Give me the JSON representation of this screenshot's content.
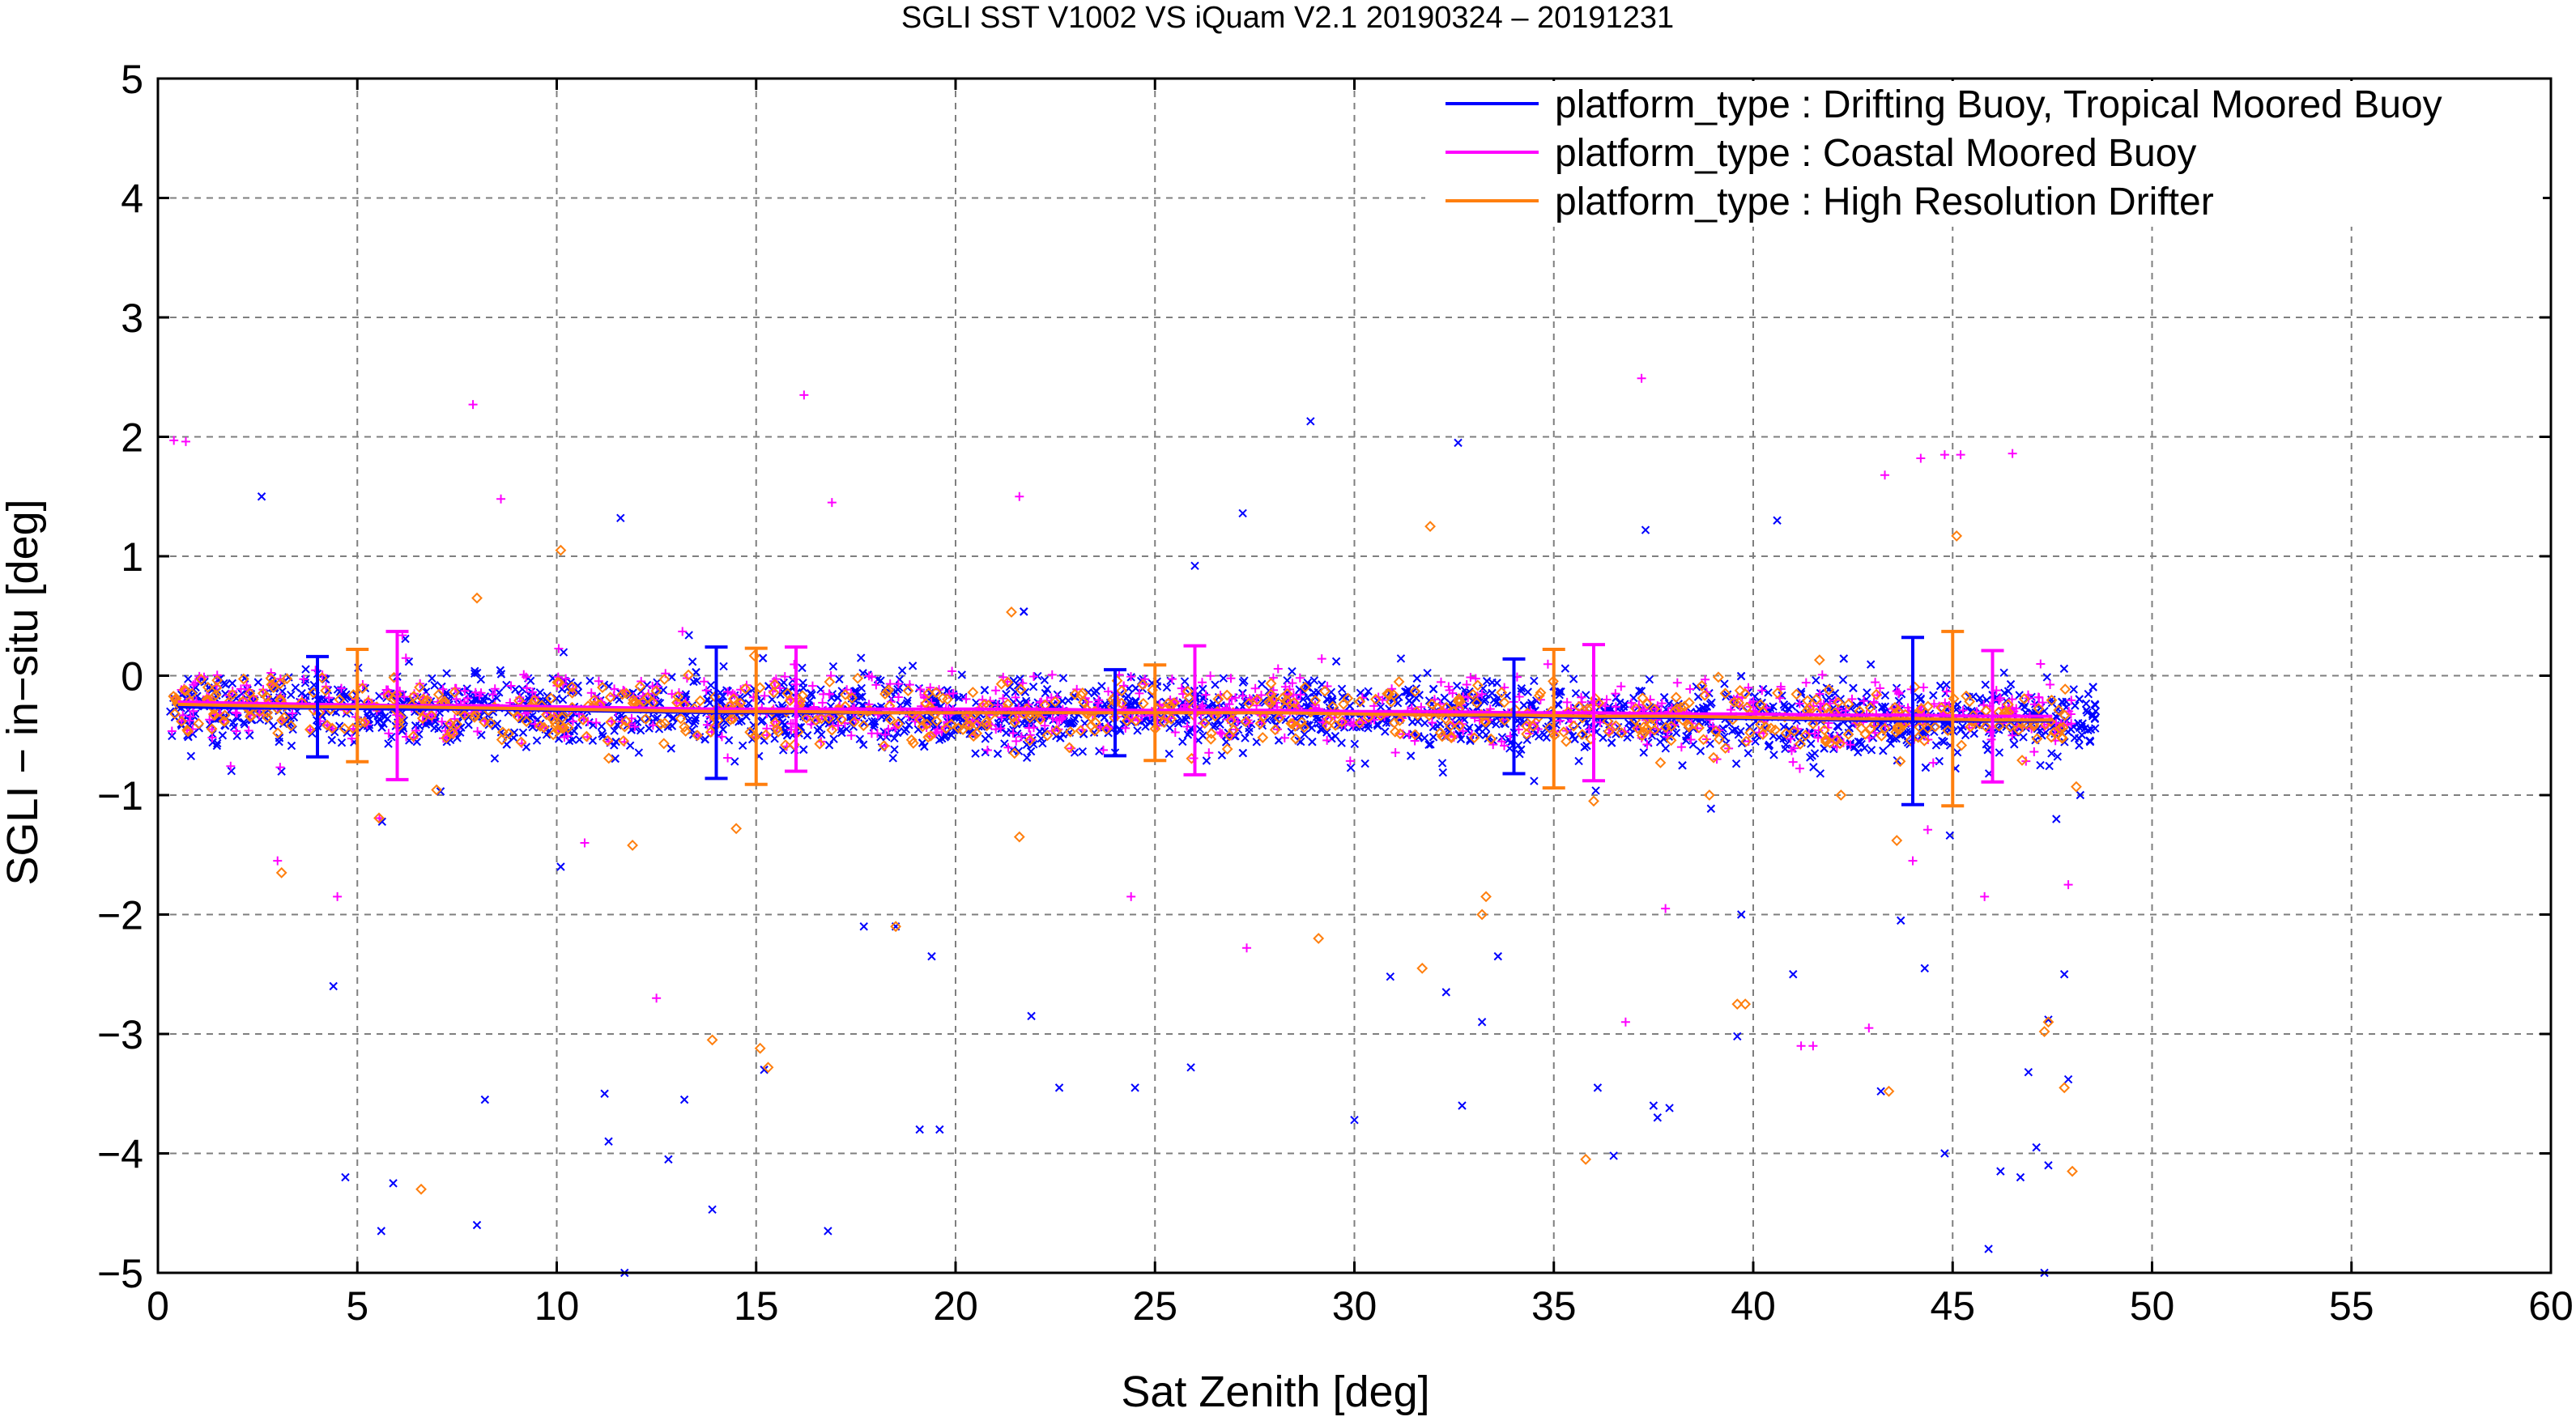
{
  "chart_data": {
    "type": "scatter",
    "title": "SGLI SST V1002 VS iQuam V2.1 20190324 – 20191231",
    "xlabel": "Sat Zenith [deg]",
    "ylabel": "SGLI − in−situ [deg]",
    "xlim": [
      0,
      60
    ],
    "ylim": [
      -5,
      5
    ],
    "xticks": [
      0,
      5,
      10,
      15,
      20,
      25,
      30,
      35,
      40,
      45,
      50,
      55,
      60
    ],
    "yticks": [
      -5,
      -4,
      -3,
      -2,
      -1,
      0,
      1,
      2,
      3,
      4,
      5
    ],
    "xtick_labels": [
      "0",
      "5",
      "10",
      "15",
      "20",
      "25",
      "30",
      "35",
      "40",
      "45",
      "50",
      "55",
      "60"
    ],
    "ytick_labels": [
      "−5",
      "−4",
      "−3",
      "−2",
      "−1",
      "0",
      "1",
      "2",
      "3",
      "4",
      "5"
    ],
    "grid": true,
    "legend_position": "top-right",
    "series": [
      {
        "name": "platform_type : Drifting Buoy, Tropical Moored Buoy",
        "color": "#0000ff",
        "marker": "x",
        "mean_line": {
          "x": [
            0.5,
            2,
            4,
            6,
            8,
            10,
            12,
            14,
            16,
            18,
            20,
            22,
            24,
            26,
            28,
            30,
            32,
            34,
            36,
            38,
            40,
            42,
            44,
            46,
            47.5
          ],
          "y": [
            -0.26,
            -0.27,
            -0.27,
            -0.28,
            -0.28,
            -0.29,
            -0.3,
            -0.31,
            -0.31,
            -0.31,
            -0.31,
            -0.31,
            -0.31,
            -0.31,
            -0.31,
            -0.32,
            -0.33,
            -0.34,
            -0.35,
            -0.35,
            -0.36,
            -0.37,
            -0.38,
            -0.38,
            -0.38
          ]
        },
        "errorbars": [
          {
            "x": 4,
            "mean": -0.26,
            "sd": 0.42
          },
          {
            "x": 14,
            "mean": -0.31,
            "sd": 0.55
          },
          {
            "x": 24,
            "mean": -0.31,
            "sd": 0.36
          },
          {
            "x": 34,
            "mean": -0.34,
            "sd": 0.48
          },
          {
            "x": 44,
            "mean": -0.38,
            "sd": 0.7
          }
        ],
        "outliers": [
          [
            2.6,
            1.5
          ],
          [
            4.4,
            -2.6
          ],
          [
            4.7,
            -4.2
          ],
          [
            5.6,
            -4.65
          ],
          [
            5.9,
            -4.25
          ],
          [
            8.0,
            -4.6
          ],
          [
            8.2,
            -3.55
          ],
          [
            10.1,
            -1.6
          ],
          [
            11.2,
            -3.5
          ],
          [
            11.3,
            -3.9
          ],
          [
            11.6,
            1.32
          ],
          [
            11.7,
            -5.0
          ],
          [
            12.8,
            -4.05
          ],
          [
            13.2,
            -3.55
          ],
          [
            13.9,
            -4.47
          ],
          [
            15.2,
            -3.3
          ],
          [
            16.8,
            -4.65
          ],
          [
            17.7,
            -2.1
          ],
          [
            18.5,
            -2.1
          ],
          [
            19.1,
            -3.8
          ],
          [
            19.4,
            -2.35
          ],
          [
            19.6,
            -3.8
          ],
          [
            21.9,
            -2.85
          ],
          [
            22.6,
            -3.45
          ],
          [
            24.5,
            -3.45
          ],
          [
            25.9,
            -3.28
          ],
          [
            27.2,
            1.36
          ],
          [
            28.9,
            2.13
          ],
          [
            30.0,
            -3.72
          ],
          [
            30.9,
            -2.52
          ],
          [
            32.3,
            -2.65
          ],
          [
            32.6,
            1.95
          ],
          [
            32.7,
            -3.6
          ],
          [
            33.2,
            -2.9
          ],
          [
            33.6,
            -2.35
          ],
          [
            36.1,
            -3.45
          ],
          [
            36.5,
            -4.02
          ],
          [
            37.5,
            -3.6
          ],
          [
            37.6,
            -3.7
          ],
          [
            37.9,
            -3.62
          ],
          [
            39.6,
            -3.02
          ],
          [
            39.7,
            -2.0
          ],
          [
            41.0,
            -2.5
          ],
          [
            43.7,
            -2.05
          ],
          [
            44.8,
            -4.0
          ],
          [
            45.9,
            -4.8
          ],
          [
            46.2,
            -4.15
          ],
          [
            46.7,
            -4.2
          ],
          [
            46.9,
            -3.32
          ],
          [
            47.1,
            -3.95
          ],
          [
            47.3,
            -5.0
          ],
          [
            47.4,
            -4.1
          ],
          [
            47.4,
            -2.88
          ],
          [
            47.8,
            -2.5
          ],
          [
            47.9,
            -3.38
          ],
          [
            43.2,
            -3.48
          ],
          [
            44.3,
            -2.45
          ],
          [
            47.6,
            -1.2
          ],
          [
            48.2,
            -1.0
          ],
          [
            40.6,
            1.3
          ],
          [
            37.3,
            1.22
          ],
          [
            26.0,
            0.92
          ]
        ]
      },
      {
        "name": "platform_type : Coastal Moored Buoy",
        "color": "#ff00ff",
        "marker": "+",
        "mean_line": {
          "x": [
            0.5,
            2,
            4,
            6,
            8,
            10,
            12,
            14,
            16,
            18,
            20,
            22,
            24,
            26,
            28,
            30,
            32,
            34,
            36,
            38,
            40,
            42,
            44,
            46,
            47.5
          ],
          "y": [
            -0.22,
            -0.23,
            -0.24,
            -0.25,
            -0.25,
            -0.26,
            -0.27,
            -0.28,
            -0.28,
            -0.28,
            -0.28,
            -0.28,
            -0.29,
            -0.29,
            -0.29,
            -0.3,
            -0.3,
            -0.31,
            -0.31,
            -0.32,
            -0.32,
            -0.33,
            -0.33,
            -0.34,
            -0.34
          ]
        },
        "errorbars": [
          {
            "x": 6,
            "mean": -0.25,
            "sd": 0.62
          },
          {
            "x": 16,
            "mean": -0.28,
            "sd": 0.52
          },
          {
            "x": 26,
            "mean": -0.29,
            "sd": 0.54
          },
          {
            "x": 36,
            "mean": -0.31,
            "sd": 0.57
          },
          {
            "x": 46,
            "mean": -0.34,
            "sd": 0.55
          }
        ],
        "outliers": [
          [
            0.4,
            1.97
          ],
          [
            0.7,
            1.96
          ],
          [
            7.9,
            2.27
          ],
          [
            16.2,
            2.35
          ],
          [
            37.2,
            2.49
          ],
          [
            8.6,
            1.48
          ],
          [
            21.6,
            1.5
          ],
          [
            16.9,
            1.45
          ],
          [
            43.3,
            1.68
          ],
          [
            44.2,
            1.82
          ],
          [
            44.8,
            1.85
          ],
          [
            45.2,
            1.85
          ],
          [
            46.5,
            1.86
          ],
          [
            47.9,
            -1.75
          ],
          [
            12.5,
            -2.7
          ],
          [
            41.2,
            -3.1
          ],
          [
            41.5,
            -3.1
          ],
          [
            45.8,
            -1.85
          ],
          [
            36.8,
            -2.9
          ],
          [
            24.4,
            -1.85
          ],
          [
            27.3,
            -2.28
          ],
          [
            44.0,
            -1.55
          ],
          [
            37.8,
            -1.95
          ],
          [
            10.7,
            -1.4
          ],
          [
            4.5,
            -1.85
          ],
          [
            3.0,
            -1.55
          ],
          [
            42.9,
            -2.95
          ]
        ]
      },
      {
        "name": "platform_type : High Resolution Drifter",
        "color": "#ff7f0e",
        "marker": "diamond",
        "mean_line": {
          "x": [
            0.5,
            2,
            4,
            6,
            8,
            10,
            12,
            14,
            16,
            18,
            20,
            22,
            24,
            26,
            28,
            30,
            32,
            34,
            36,
            38,
            40,
            42,
            44,
            46,
            47.5
          ],
          "y": [
            -0.24,
            -0.25,
            -0.26,
            -0.26,
            -0.27,
            -0.28,
            -0.29,
            -0.3,
            -0.3,
            -0.31,
            -0.31,
            -0.31,
            -0.31,
            -0.31,
            -0.31,
            -0.32,
            -0.33,
            -0.33,
            -0.34,
            -0.34,
            -0.35,
            -0.36,
            -0.36,
            -0.37,
            -0.37
          ]
        },
        "errorbars": [
          {
            "x": 5,
            "mean": -0.25,
            "sd": 0.47
          },
          {
            "x": 15,
            "mean": -0.34,
            "sd": 0.57
          },
          {
            "x": 25,
            "mean": -0.31,
            "sd": 0.4
          },
          {
            "x": 35,
            "mean": -0.36,
            "sd": 0.58
          },
          {
            "x": 45,
            "mean": -0.36,
            "sd": 0.73
          }
        ],
        "outliers": [
          [
            3.1,
            -1.65
          ],
          [
            6.6,
            -4.3
          ],
          [
            13.9,
            -3.05
          ],
          [
            15.1,
            -3.12
          ],
          [
            15.3,
            -3.28
          ],
          [
            14.5,
            -1.28
          ],
          [
            18.5,
            -2.1
          ],
          [
            21.6,
            -1.35
          ],
          [
            29.1,
            -2.2
          ],
          [
            31.7,
            -2.45
          ],
          [
            31.9,
            1.25
          ],
          [
            33.2,
            -2.0
          ],
          [
            33.3,
            -1.85
          ],
          [
            35.8,
            -4.05
          ],
          [
            36.0,
            -1.05
          ],
          [
            38.9,
            -1.0
          ],
          [
            39.6,
            -2.75
          ],
          [
            39.8,
            -2.75
          ],
          [
            43.4,
            -3.48
          ],
          [
            43.6,
            -1.38
          ],
          [
            45.1,
            1.17
          ],
          [
            47.3,
            -2.98
          ],
          [
            47.4,
            -2.9
          ],
          [
            47.8,
            -3.45
          ],
          [
            48.0,
            -4.15
          ],
          [
            48.1,
            -0.93
          ],
          [
            11.9,
            -1.42
          ],
          [
            10.1,
            1.05
          ],
          [
            8.0,
            0.65
          ],
          [
            42.2,
            -1.0
          ]
        ]
      }
    ]
  }
}
